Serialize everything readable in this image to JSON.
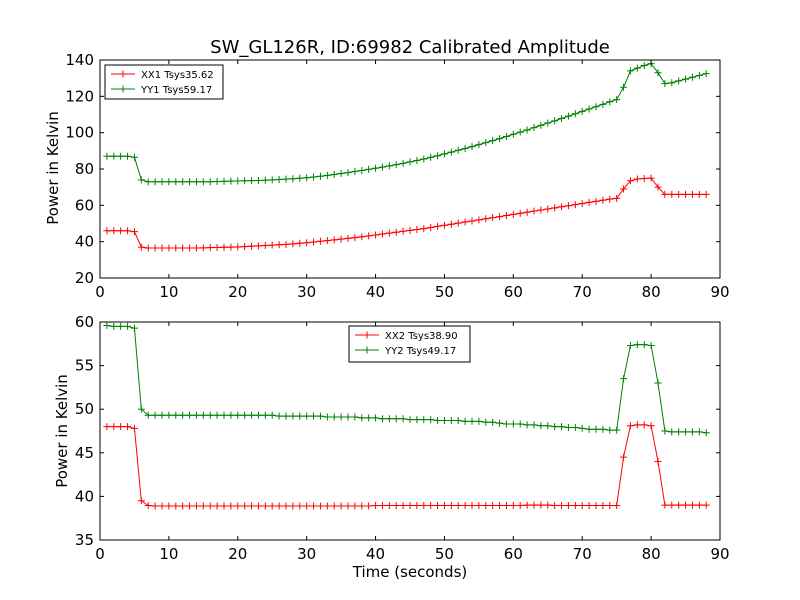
{
  "chart_data": [
    {
      "type": "line",
      "title": "SW_GL126R, ID:69982 Calibrated Amplitude",
      "xlabel": "",
      "ylabel": "Power in Kelvin",
      "xlim": [
        0,
        90
      ],
      "ylim": [
        20,
        140
      ],
      "xticks": [
        0,
        10,
        20,
        30,
        40,
        50,
        60,
        70,
        80,
        90
      ],
      "yticks": [
        20,
        40,
        60,
        80,
        100,
        120,
        140
      ],
      "grid": false,
      "legend_position": "top-left",
      "marker": "plus",
      "x": [
        1,
        2,
        3,
        4,
        5,
        6,
        7,
        8,
        9,
        10,
        11,
        12,
        13,
        14,
        15,
        16,
        17,
        18,
        19,
        20,
        21,
        22,
        23,
        24,
        25,
        26,
        27,
        28,
        29,
        30,
        31,
        32,
        33,
        34,
        35,
        36,
        37,
        38,
        39,
        40,
        41,
        42,
        43,
        44,
        45,
        46,
        47,
        48,
        49,
        50,
        51,
        52,
        53,
        54,
        55,
        56,
        57,
        58,
        59,
        60,
        61,
        62,
        63,
        64,
        65,
        66,
        67,
        68,
        69,
        70,
        71,
        72,
        73,
        74,
        75,
        76,
        77,
        78,
        79,
        80,
        81,
        82,
        83,
        84,
        85,
        86,
        87,
        88
      ],
      "series": [
        {
          "name": "XX1 Tsys35.62",
          "color": "#ff0000",
          "values": [
            46,
            46,
            46,
            46,
            45.5,
            37,
            36.5,
            36.5,
            36.5,
            36.5,
            36.5,
            36.5,
            36.5,
            36.5,
            36.6,
            36.7,
            36.8,
            36.9,
            37,
            37.1,
            37.3,
            37.5,
            37.7,
            37.9,
            38.1,
            38.3,
            38.5,
            38.8,
            39.1,
            39.4,
            39.8,
            40.2,
            40.6,
            41,
            41.4,
            41.8,
            42.2,
            42.7,
            43.2,
            43.7,
            44.2,
            44.7,
            45.2,
            45.7,
            46.2,
            46.7,
            47.2,
            47.8,
            48.4,
            49,
            49.6,
            50.2,
            50.8,
            51.4,
            52,
            52.6,
            53.2,
            53.8,
            54.4,
            55,
            55.6,
            56.2,
            56.8,
            57.4,
            58,
            58.6,
            59.2,
            59.8,
            60.4,
            61,
            61.6,
            62.2,
            62.8,
            63.4,
            63.8,
            69,
            73.5,
            74.5,
            74.8,
            75,
            70,
            66,
            66,
            66,
            66,
            66,
            66,
            66
          ]
        },
        {
          "name": "YY1 Tsys59.17",
          "color": "#008000",
          "values": [
            87,
            87,
            87,
            87,
            86.5,
            74,
            73,
            73,
            73,
            73,
            73,
            73,
            73,
            73,
            73,
            73,
            73.1,
            73.2,
            73.3,
            73.4,
            73.5,
            73.6,
            73.7,
            73.8,
            74,
            74.2,
            74.4,
            74.6,
            74.9,
            75.2,
            75.6,
            76,
            76.5,
            77,
            77.5,
            78,
            78.6,
            79.2,
            79.8,
            80.4,
            81,
            81.7,
            82.4,
            83.1,
            83.9,
            84.7,
            85.5,
            86.4,
            87.3,
            88.3,
            89.3,
            90.3,
            91.3,
            92.3,
            93.4,
            94.5,
            95.6,
            96.7,
            97.9,
            99.1,
            100.3,
            101.5,
            102.8,
            104,
            105.3,
            106.5,
            107.8,
            109.1,
            110.4,
            111.7,
            113,
            114.3,
            115.6,
            117,
            118.2,
            125,
            134,
            135.5,
            137,
            138,
            133,
            127,
            127.5,
            128.5,
            129.5,
            130.5,
            131.5,
            132.5
          ]
        }
      ]
    },
    {
      "type": "line",
      "title": "",
      "xlabel": "Time (seconds)",
      "ylabel": "Power in Kelvin",
      "xlim": [
        0,
        90
      ],
      "ylim": [
        35,
        60
      ],
      "xticks": [
        0,
        10,
        20,
        30,
        40,
        50,
        60,
        70,
        80,
        90
      ],
      "yticks": [
        35,
        40,
        45,
        50,
        55,
        60
      ],
      "grid": false,
      "legend_position": "top-center",
      "marker": "plus",
      "x": [
        1,
        2,
        3,
        4,
        5,
        6,
        7,
        8,
        9,
        10,
        11,
        12,
        13,
        14,
        15,
        16,
        17,
        18,
        19,
        20,
        21,
        22,
        23,
        24,
        25,
        26,
        27,
        28,
        29,
        30,
        31,
        32,
        33,
        34,
        35,
        36,
        37,
        38,
        39,
        40,
        41,
        42,
        43,
        44,
        45,
        46,
        47,
        48,
        49,
        50,
        51,
        52,
        53,
        54,
        55,
        56,
        57,
        58,
        59,
        60,
        61,
        62,
        63,
        64,
        65,
        66,
        67,
        68,
        69,
        70,
        71,
        72,
        73,
        74,
        75,
        76,
        77,
        78,
        79,
        80,
        81,
        82,
        83,
        84,
        85,
        86,
        87,
        88
      ],
      "series": [
        {
          "name": "XX2 Tsys38.90",
          "color": "#ff0000",
          "values": [
            48,
            48,
            48,
            48,
            47.8,
            39.5,
            38.95,
            38.9,
            38.9,
            38.9,
            38.9,
            38.9,
            38.9,
            38.9,
            38.9,
            38.9,
            38.9,
            38.9,
            38.9,
            38.9,
            38.9,
            38.9,
            38.9,
            38.9,
            38.9,
            38.9,
            38.9,
            38.9,
            38.9,
            38.9,
            38.9,
            38.9,
            38.9,
            38.9,
            38.9,
            38.9,
            38.9,
            38.9,
            38.9,
            38.95,
            38.95,
            38.95,
            38.95,
            38.95,
            38.95,
            38.95,
            38.95,
            38.95,
            38.95,
            38.95,
            38.95,
            38.95,
            38.95,
            38.95,
            38.95,
            38.95,
            38.95,
            38.95,
            38.95,
            38.95,
            38.95,
            39,
            39,
            39,
            39,
            38.95,
            38.95,
            38.95,
            38.95,
            38.95,
            38.95,
            38.95,
            38.95,
            38.95,
            38.95,
            44.5,
            48.1,
            48.2,
            48.2,
            48.1,
            44,
            39,
            39,
            39,
            39,
            39,
            39,
            39
          ]
        },
        {
          "name": "YY2 Tsys49.17",
          "color": "#008000",
          "values": [
            59.6,
            59.5,
            59.5,
            59.5,
            59.3,
            50,
            49.3,
            49.3,
            49.3,
            49.3,
            49.3,
            49.3,
            49.3,
            49.3,
            49.3,
            49.3,
            49.3,
            49.3,
            49.3,
            49.3,
            49.3,
            49.3,
            49.3,
            49.3,
            49.3,
            49.2,
            49.2,
            49.2,
            49.2,
            49.2,
            49.2,
            49.2,
            49.1,
            49.1,
            49.1,
            49.1,
            49.1,
            49,
            49,
            49,
            48.9,
            48.9,
            48.9,
            48.9,
            48.8,
            48.8,
            48.8,
            48.8,
            48.7,
            48.7,
            48.7,
            48.7,
            48.6,
            48.6,
            48.6,
            48.5,
            48.5,
            48.4,
            48.3,
            48.3,
            48.3,
            48.2,
            48.2,
            48.1,
            48.1,
            48,
            48,
            47.9,
            47.9,
            47.8,
            47.7,
            47.7,
            47.7,
            47.6,
            47.6,
            53.5,
            57.3,
            57.4,
            57.4,
            57.3,
            53,
            47.5,
            47.4,
            47.4,
            47.4,
            47.4,
            47.4,
            47.3
          ]
        }
      ]
    }
  ]
}
